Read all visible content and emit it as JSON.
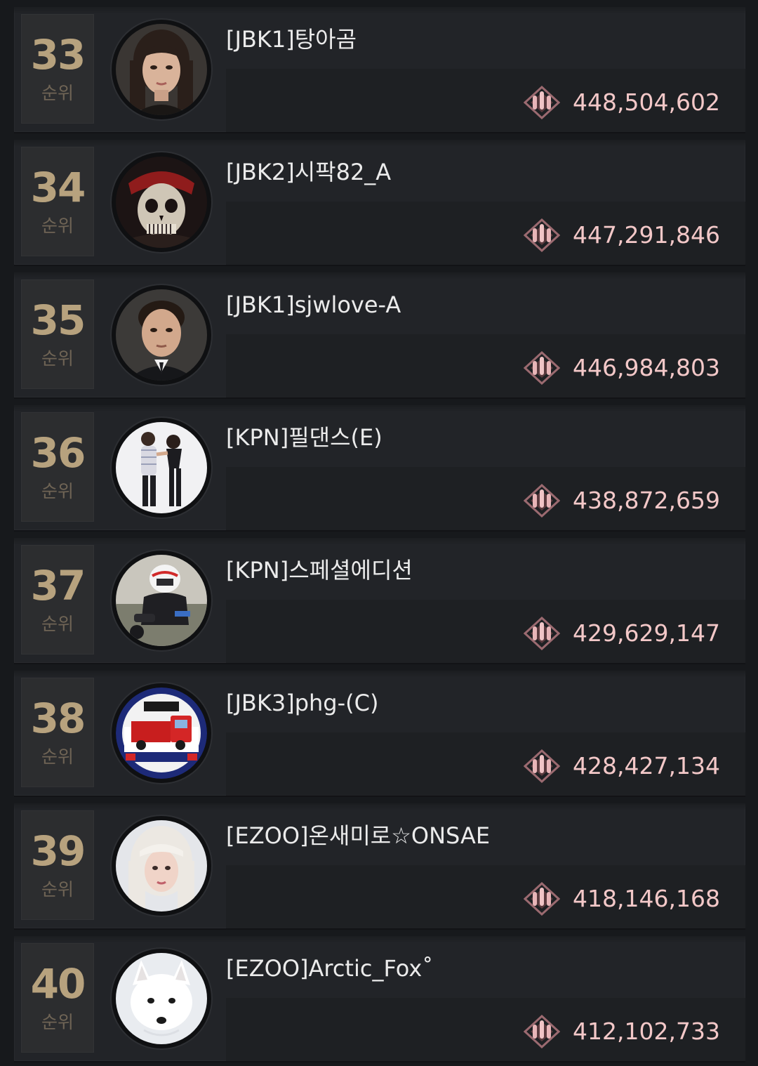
{
  "rank_label": "순위",
  "score_icon": "ammo-medal-icon",
  "colors": {
    "rank_number": "#b7a27e",
    "score_text": "#f3c8c8",
    "score_icon": "#c98b92"
  },
  "entries": [
    {
      "rank": "33",
      "name": "[JBK1]탕아곰",
      "score": "448,504,602",
      "avatar": "female-portrait"
    },
    {
      "rank": "34",
      "name": "[JBK2]시팍82_A",
      "score": "447,291,846",
      "avatar": "pirate-skull"
    },
    {
      "rank": "35",
      "name": "[JBK1]sjwlove-A",
      "score": "446,984,803",
      "avatar": "male-portrait"
    },
    {
      "rank": "36",
      "name": "[KPN]필댄스(E)",
      "score": "438,872,659",
      "avatar": "dancing-couple"
    },
    {
      "rank": "37",
      "name": "[KPN]스페셜에디션",
      "score": "429,629,147",
      "avatar": "motorcycle-rider"
    },
    {
      "rank": "38",
      "name": "[JBK3]phg-(C)",
      "score": "428,427,134",
      "avatar": "truck-badge"
    },
    {
      "rank": "39",
      "name": "[EZOO]온새미로☆ONSAE",
      "score": "418,146,168",
      "avatar": "blonde-portrait"
    },
    {
      "rank": "40",
      "name": "[EZOO]Arctic_Fox˚",
      "score": "412,102,733",
      "avatar": "arctic-fox"
    }
  ]
}
